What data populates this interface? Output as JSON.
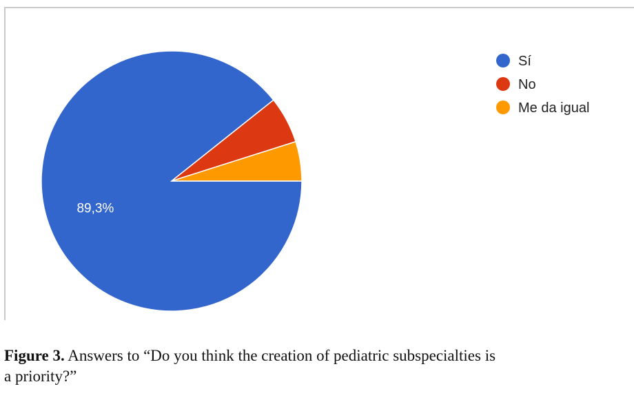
{
  "chart_data": {
    "type": "pie",
    "slices": [
      {
        "label": "Sí",
        "value": 89.3,
        "color": "#3366cc",
        "data_label": "89,3%"
      },
      {
        "label": "No",
        "value": 5.8,
        "color": "#dc3912",
        "data_label": ""
      },
      {
        "label": "Me da igual",
        "value": 4.9,
        "color": "#ff9900",
        "data_label": ""
      }
    ],
    "legend_placement": "top-right",
    "start_angle_deg": 90,
    "direction": "counterclockwise"
  },
  "caption": {
    "figure_label": "Figure 3.",
    "text_line1": " Answers to “Do you think the creation of pediatric subspecialties is",
    "text_line2": "a priority?”"
  }
}
